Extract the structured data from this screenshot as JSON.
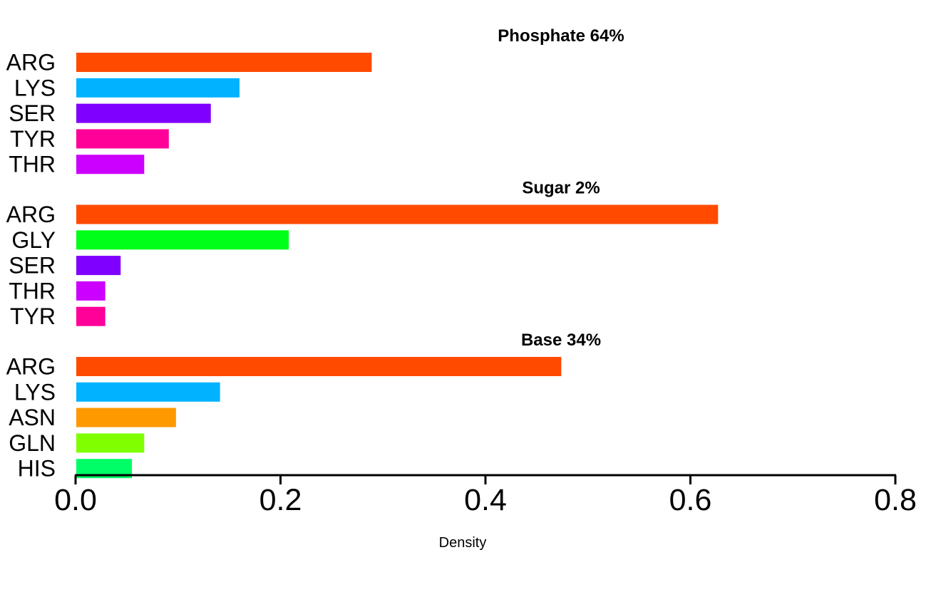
{
  "chart_data": {
    "type": "bar",
    "orientation": "horizontal",
    "xlabel": "Density",
    "xlim": [
      0,
      0.8
    ],
    "xticks": [
      "0.0",
      "0.2",
      "0.4",
      "0.6",
      "0.8"
    ],
    "grid": false,
    "legend": "none",
    "panels": [
      {
        "title": "Phosphate 64%",
        "categories": [
          "ARG",
          "LYS",
          "SER",
          "TYR",
          "THR"
        ],
        "values": [
          0.289,
          0.16,
          0.132,
          0.091,
          0.067
        ],
        "colors": [
          "#FF4A00",
          "#00B2FF",
          "#8000FF",
          "#FF0099",
          "#CC00FF"
        ]
      },
      {
        "title": "Sugar 2%",
        "categories": [
          "ARG",
          "GLY",
          "SER",
          "THR",
          "TYR"
        ],
        "values": [
          0.627,
          0.208,
          0.044,
          0.029,
          0.029
        ],
        "colors": [
          "#FF4A00",
          "#00FF19",
          "#8000FF",
          "#CC00FF",
          "#FF0099"
        ]
      },
      {
        "title": "Base 34%",
        "categories": [
          "ARG",
          "LYS",
          "ASN",
          "GLN",
          "HIS"
        ],
        "values": [
          0.474,
          0.141,
          0.098,
          0.067,
          0.055
        ],
        "colors": [
          "#FF4A00",
          "#00B2FF",
          "#FF9900",
          "#80FF00",
          "#00FF66"
        ]
      }
    ]
  }
}
